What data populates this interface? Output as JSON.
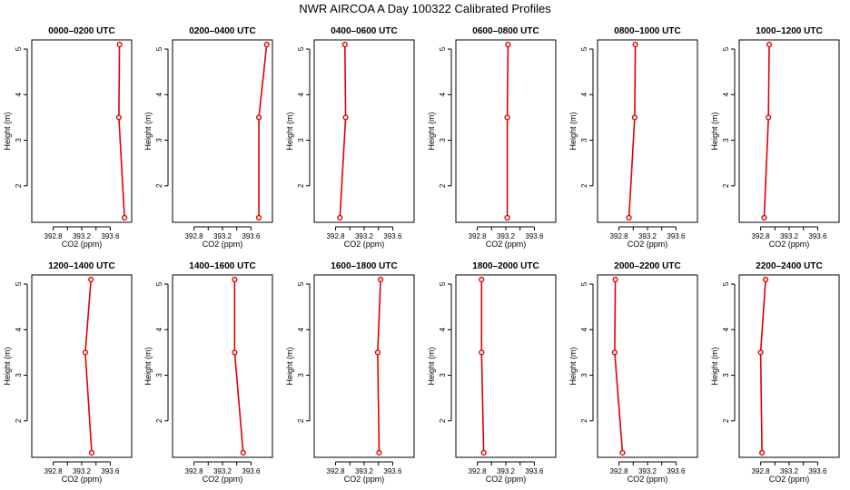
{
  "title": "NWR AIRCOA A  Day 100322  Calibrated Profiles",
  "axes": {
    "xlabel": "CO2 (ppm)",
    "ylabel": "Height (m)",
    "xticks": [
      "392.8",
      "393.2",
      "393.6"
    ],
    "yticks": [
      "2",
      "3",
      "4",
      "5"
    ],
    "xlim": [
      392.5,
      393.9
    ],
    "ylim": [
      1.2,
      5.2
    ]
  },
  "colors": {
    "series": "#e00000",
    "axis": "#000000"
  },
  "chart_data": [
    {
      "type": "line",
      "title": "0000–0200 UTC",
      "x": [
        393.73,
        393.72,
        393.8
      ],
      "y": [
        5.1,
        3.5,
        1.3
      ]
    },
    {
      "type": "line",
      "title": "0200–0400 UTC",
      "x": [
        393.82,
        393.71,
        393.71
      ],
      "y": [
        5.1,
        3.5,
        1.3
      ]
    },
    {
      "type": "line",
      "title": "0400–0600 UTC",
      "x": [
        392.93,
        392.94,
        392.86
      ],
      "y": [
        5.1,
        3.5,
        1.3
      ]
    },
    {
      "type": "line",
      "title": "0600–0800 UTC",
      "x": [
        393.23,
        393.22,
        393.22
      ],
      "y": [
        5.1,
        3.5,
        1.3
      ]
    },
    {
      "type": "line",
      "title": "0800–1000 UTC",
      "x": [
        393.03,
        393.02,
        392.94
      ],
      "y": [
        5.1,
        3.5,
        1.3
      ]
    },
    {
      "type": "line",
      "title": "1000–1200 UTC",
      "x": [
        392.92,
        392.91,
        392.85
      ],
      "y": [
        5.1,
        3.5,
        1.3
      ]
    },
    {
      "type": "line",
      "title": "1200–1400 UTC",
      "x": [
        393.33,
        393.25,
        393.34
      ],
      "y": [
        5.1,
        3.5,
        1.3
      ]
    },
    {
      "type": "line",
      "title": "1400–1600 UTC",
      "x": [
        393.37,
        393.37,
        393.49
      ],
      "y": [
        5.1,
        3.5,
        1.3
      ]
    },
    {
      "type": "line",
      "title": "1600–1800 UTC",
      "x": [
        393.43,
        393.39,
        393.41
      ],
      "y": [
        5.1,
        3.5,
        1.3
      ]
    },
    {
      "type": "line",
      "title": "1800–2000 UTC",
      "x": [
        392.86,
        392.86,
        392.89
      ],
      "y": [
        5.1,
        3.5,
        1.3
      ]
    },
    {
      "type": "line",
      "title": "2000–2200 UTC",
      "x": [
        392.75,
        392.74,
        392.85
      ],
      "y": [
        5.1,
        3.5,
        1.3
      ]
    },
    {
      "type": "line",
      "title": "2200–2400 UTC",
      "x": [
        392.87,
        392.8,
        392.82
      ],
      "y": [
        5.1,
        3.5,
        1.3
      ]
    }
  ]
}
